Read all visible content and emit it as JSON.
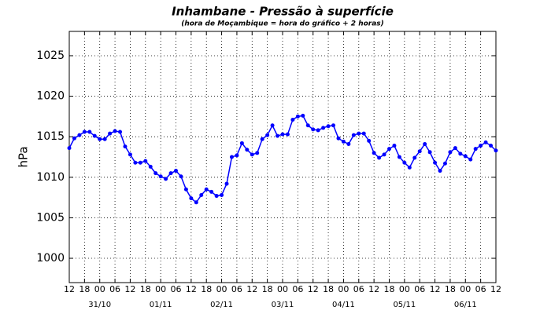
{
  "chart_data": {
    "type": "line",
    "title": "Inhambane - Pressão à superfície",
    "subtitle": "(hora de Moçambique = hora do gráfico + 2 horas)",
    "ylabel": "hPa",
    "x": [
      0,
      2,
      4,
      6,
      8,
      10,
      12,
      14,
      16,
      18,
      20,
      22,
      24,
      26,
      28,
      30,
      32,
      34,
      36,
      38,
      40,
      42,
      44,
      46,
      48,
      50,
      52,
      54,
      56,
      58,
      60,
      62,
      64,
      66,
      68,
      70,
      72,
      74,
      76,
      78,
      80,
      82,
      84,
      86,
      88,
      90,
      92,
      94,
      96,
      98,
      100,
      102,
      104,
      106,
      108,
      110,
      112,
      114,
      116,
      118,
      120,
      122,
      124,
      126,
      128,
      130,
      132,
      134,
      136,
      138,
      140,
      142,
      144,
      146,
      148,
      150,
      152,
      154,
      156,
      158,
      160,
      162,
      164,
      166,
      168
    ],
    "series": [
      {
        "color": "#0000ff",
        "values": [
          1013.6,
          1014.8,
          1015.2,
          1015.6,
          1015.6,
          1015.1,
          1014.7,
          1014.7,
          1015.4,
          1015.7,
          1015.6,
          1013.8,
          1012.8,
          1011.8,
          1011.8,
          1012.0,
          1011.3,
          1010.5,
          1010.1,
          1009.8,
          1010.5,
          1010.8,
          1010.1,
          1008.5,
          1007.4,
          1006.9,
          1007.8,
          1008.5,
          1008.2,
          1007.7,
          1007.8,
          1009.2,
          1012.5,
          1012.7,
          1014.2,
          1013.4,
          1012.8,
          1013.0,
          1014.7,
          1015.2,
          1016.4,
          1015.1,
          1015.3,
          1015.3,
          1017.1,
          1017.5,
          1017.6,
          1016.4,
          1015.9,
          1015.8,
          1016.1,
          1016.3,
          1016.4,
          1014.8,
          1014.4,
          1014.1,
          1015.2,
          1015.4,
          1015.4,
          1014.5,
          1013.0,
          1012.4,
          1012.8,
          1013.5,
          1013.9,
          1012.5,
          1011.8,
          1011.2,
          1012.4,
          1013.2,
          1014.1,
          1013.1,
          1011.8,
          1010.8,
          1011.7,
          1013.1,
          1013.6,
          1012.9,
          1012.6,
          1012.2,
          1013.5,
          1013.9,
          1014.3,
          1013.9,
          1013.3
        ]
      }
    ],
    "xlim": [
      0,
      168
    ],
    "xticks": [
      {
        "value": 0,
        "label": "12"
      },
      {
        "value": 6,
        "label": "18"
      },
      {
        "value": 12,
        "label": "00"
      },
      {
        "value": 18,
        "label": "06"
      },
      {
        "value": 24,
        "label": "12"
      },
      {
        "value": 30,
        "label": "18"
      },
      {
        "value": 36,
        "label": "00"
      },
      {
        "value": 42,
        "label": "06"
      },
      {
        "value": 48,
        "label": "12"
      },
      {
        "value": 54,
        "label": "18"
      },
      {
        "value": 60,
        "label": "00"
      },
      {
        "value": 66,
        "label": "06"
      },
      {
        "value": 72,
        "label": "12"
      },
      {
        "value": 78,
        "label": "18"
      },
      {
        "value": 84,
        "label": "00"
      },
      {
        "value": 90,
        "label": "06"
      },
      {
        "value": 96,
        "label": "12"
      },
      {
        "value": 102,
        "label": "18"
      },
      {
        "value": 108,
        "label": "00"
      },
      {
        "value": 114,
        "label": "06"
      },
      {
        "value": 120,
        "label": "12"
      },
      {
        "value": 126,
        "label": "18"
      },
      {
        "value": 132,
        "label": "00"
      },
      {
        "value": 138,
        "label": "06"
      },
      {
        "value": 144,
        "label": "12"
      },
      {
        "value": 150,
        "label": "18"
      },
      {
        "value": 156,
        "label": "00"
      },
      {
        "value": 162,
        "label": "06"
      },
      {
        "value": 168,
        "label": "12"
      }
    ],
    "date_ticks": [
      {
        "value": 12,
        "label": "31/10"
      },
      {
        "value": 36,
        "label": "01/11"
      },
      {
        "value": 60,
        "label": "02/11"
      },
      {
        "value": 84,
        "label": "03/11"
      },
      {
        "value": 108,
        "label": "04/11"
      },
      {
        "value": 132,
        "label": "05/11"
      },
      {
        "value": 156,
        "label": "06/11"
      }
    ],
    "ylim": [
      997,
      1028
    ],
    "yticks": [
      1000,
      1005,
      1010,
      1015,
      1020,
      1025
    ],
    "grid": true
  }
}
